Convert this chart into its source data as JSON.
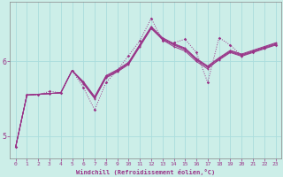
{
  "xlabel": "Windchill (Refroidissement éolien,°C)",
  "background_color": "#cceee8",
  "grid_color": "#aadddd",
  "line_color": "#993388",
  "xlim": [
    -0.5,
    23.5
  ],
  "ylim": [
    4.7,
    6.8
  ],
  "yticks": [
    5,
    6
  ],
  "xticks": [
    0,
    1,
    2,
    3,
    4,
    5,
    6,
    7,
    8,
    9,
    10,
    11,
    12,
    13,
    14,
    15,
    16,
    17,
    18,
    19,
    20,
    21,
    22,
    23
  ],
  "series": [
    [
      4.85,
      5.55,
      5.56,
      5.57,
      5.58,
      5.88,
      5.7,
      5.5,
      5.78,
      5.86,
      5.96,
      6.2,
      6.44,
      6.3,
      6.22,
      6.16,
      6.02,
      5.92,
      6.02,
      6.12,
      6.07,
      6.12,
      6.17,
      6.22
    ],
    [
      4.85,
      5.55,
      5.56,
      5.57,
      5.58,
      5.88,
      5.71,
      5.51,
      5.79,
      5.87,
      5.97,
      6.21,
      6.45,
      6.29,
      6.2,
      6.14,
      6.0,
      5.9,
      6.03,
      6.13,
      6.08,
      6.13,
      6.18,
      6.23
    ],
    [
      4.85,
      5.55,
      5.56,
      5.57,
      5.58,
      5.88,
      5.72,
      5.52,
      5.8,
      5.88,
      5.98,
      6.22,
      6.46,
      6.31,
      6.23,
      6.17,
      6.03,
      5.93,
      6.04,
      6.14,
      6.09,
      6.14,
      6.19,
      6.24
    ],
    [
      4.85,
      5.55,
      5.56,
      5.57,
      5.58,
      5.88,
      5.73,
      5.53,
      5.81,
      5.89,
      5.99,
      6.23,
      6.47,
      6.32,
      6.24,
      6.18,
      6.04,
      5.94,
      6.05,
      6.15,
      6.1,
      6.15,
      6.2,
      6.25
    ]
  ],
  "jagged_series": [
    [
      4.85,
      5.55,
      5.55,
      5.6,
      5.58,
      5.88,
      5.65,
      5.35,
      5.72,
      5.88,
      6.08,
      6.28,
      6.58,
      6.28,
      6.25,
      6.3,
      6.12,
      5.72,
      6.32,
      6.22,
      6.08,
      6.13,
      6.18,
      6.22
    ]
  ]
}
